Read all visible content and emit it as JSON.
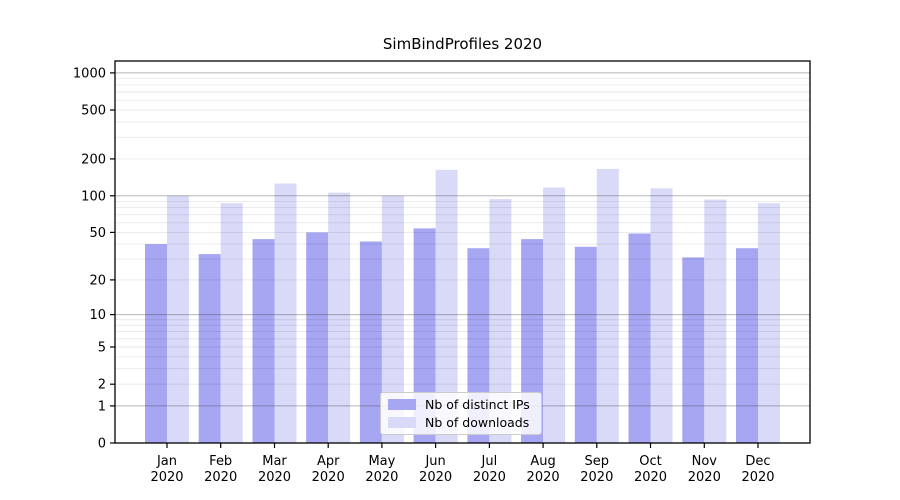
{
  "chart_data": {
    "type": "bar",
    "title": "SimBindProfiles 2020",
    "categories": [
      "Jan 2020",
      "Feb 2020",
      "Mar 2020",
      "Apr 2020",
      "May 2020",
      "Jun 2020",
      "Jul 2020",
      "Aug 2020",
      "Sep 2020",
      "Oct 2020",
      "Nov 2020",
      "Dec 2020"
    ],
    "series": [
      {
        "name": "Nb of distinct IPs",
        "color": "#a6a6f2",
        "values": [
          40,
          33,
          44,
          50,
          42,
          54,
          37,
          44,
          38,
          49,
          31,
          37
        ]
      },
      {
        "name": "Nb of downloads",
        "color": "#d9d9f8",
        "values": [
          100,
          87,
          126,
          106,
          100,
          163,
          94,
          117,
          166,
          115,
          93,
          87
        ]
      }
    ],
    "xlabel": "",
    "ylabel": "",
    "yscale": "log10(1+v)",
    "ylim": [
      0,
      1250
    ],
    "yticks": [
      0,
      1,
      2,
      5,
      10,
      20,
      50,
      100,
      200,
      500,
      1000
    ],
    "grid": {
      "enabled": true,
      "major_values": [
        1,
        10,
        100,
        1000
      ],
      "minor_decades": [
        1,
        10,
        100
      ]
    },
    "legend": {
      "position": "lower center-left, inside plot"
    }
  }
}
